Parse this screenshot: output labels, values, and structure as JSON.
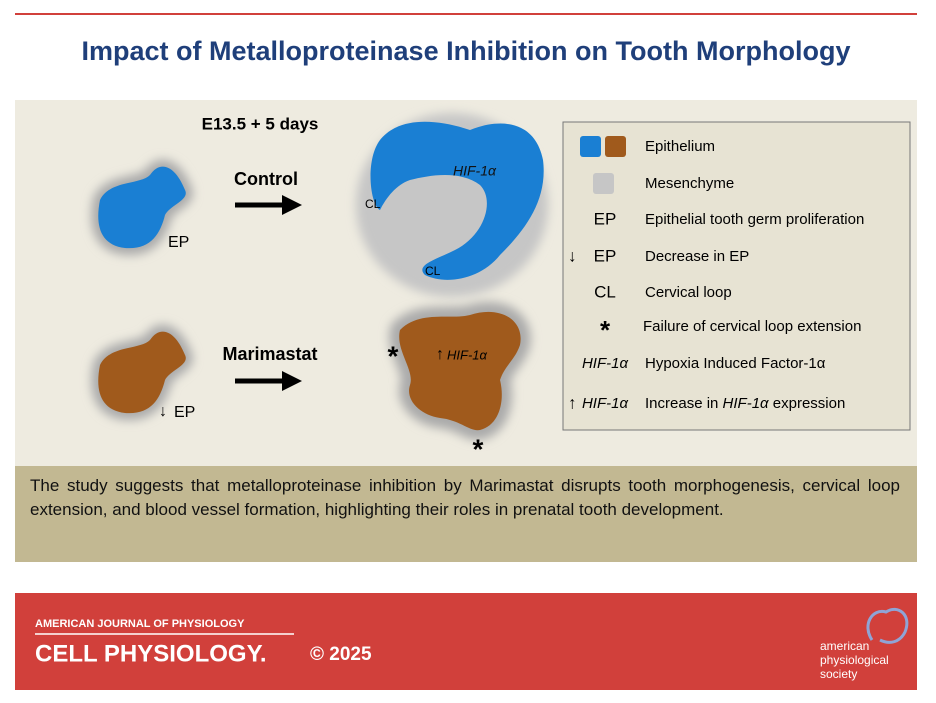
{
  "header": {
    "title": "Impact of Metalloproteinase Inhibition on Tooth Morphology"
  },
  "diagram": {
    "timepoint": "E13.5 + 5 days",
    "control": {
      "label": "Control",
      "left_label": "EP",
      "right_labels": [
        "CL",
        "CL"
      ],
      "marker": "HIF-1α"
    },
    "marimastat": {
      "label": "Marimastat",
      "left_arrow": "↓",
      "left_label": "EP",
      "marker_arrow": "↑",
      "marker": "HIF-1α",
      "asterisks": [
        "*",
        "*"
      ]
    }
  },
  "legend": {
    "items": [
      {
        "text": "Epithelium"
      },
      {
        "text": "Mesenchyme"
      },
      {
        "symbol": "EP",
        "text": "Epithelial tooth germ proliferation"
      },
      {
        "arrow": "↓",
        "symbol": "EP",
        "text": "Decrease in EP"
      },
      {
        "symbol": "CL",
        "text": "Cervical loop"
      },
      {
        "symbol": "*",
        "text": "Failure of cervical loop extension"
      },
      {
        "symbol": "HIF-1α",
        "text": "Hypoxia Induced Factor-1α"
      },
      {
        "arrow": "↑",
        "symbol": "HIF-1α",
        "text": [
          "Increase in ",
          "HIF-1α",
          " expression"
        ]
      }
    ]
  },
  "summary": "The study suggests that metalloproteinase inhibition by Marimastat disrupts tooth morphogenesis, cervical loop extension, and blood vessel formation, highlighting their roles in prenatal tooth development.",
  "footer": {
    "journal": "AMERICAN JOURNAL OF PHYSIOLOGY",
    "section": "CELL PHYSIOLOGY.",
    "copyright": "© 2025",
    "society": [
      "american",
      "physiological",
      "society"
    ]
  }
}
